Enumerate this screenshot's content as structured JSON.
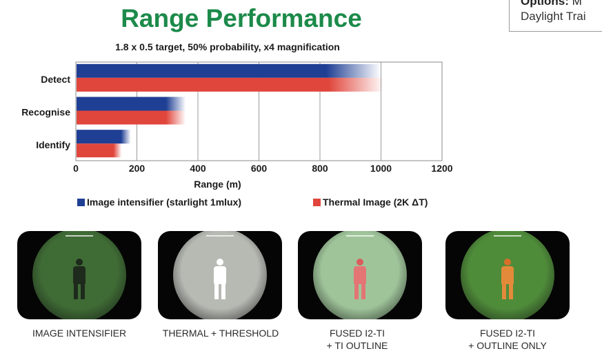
{
  "title": "Range Performance",
  "subtitle": "1.8 x 0.5 target, 50% probability, x4 magnification",
  "corner": {
    "line1_bold": "Options:",
    "line1_rest": " M",
    "line2": "Daylight Trai"
  },
  "chart_data": {
    "type": "bar",
    "orientation": "horizontal",
    "categories": [
      "Detect",
      "Recognise",
      "Identify"
    ],
    "series": [
      {
        "name": "Image intensifier (starlight 1mlux)",
        "color": "#1f3f94",
        "values": [
          1000,
          360,
          180
        ]
      },
      {
        "name": "Thermal Image (2K ΔT)",
        "color": "#e0463c",
        "values": [
          1010,
          360,
          150
        ]
      }
    ],
    "xlabel": "Range (m)",
    "xlim": [
      0,
      1200
    ],
    "xticks": [
      "0",
      "200",
      "400",
      "600",
      "800",
      "1000",
      "1200"
    ],
    "grid": true,
    "legend_position": "bottom"
  },
  "thumbnails": [
    {
      "caption_lines": [
        "IMAGE INTENSIFIER"
      ],
      "bg": "#3f6b35",
      "figure": "#1e2a1c",
      "figure_head": "#1e2a1c"
    },
    {
      "caption_lines": [
        "THERMAL + THRESHOLD"
      ],
      "bg": "#b7b9b3",
      "figure": "#ffffff",
      "figure_head": "#ffffff"
    },
    {
      "caption_lines": [
        "FUSED I2-TI",
        "+ TI OUTLINE"
      ],
      "bg": "#9fc49a",
      "figure": "#e37575",
      "figure_head": "#d85d5d"
    },
    {
      "caption_lines": [
        "FUSED I2-TI",
        "+ OUTLINE ONLY"
      ],
      "bg": "#4f8c3a",
      "figure": "#e38a3a",
      "figure_head": "#d96f2a"
    }
  ]
}
